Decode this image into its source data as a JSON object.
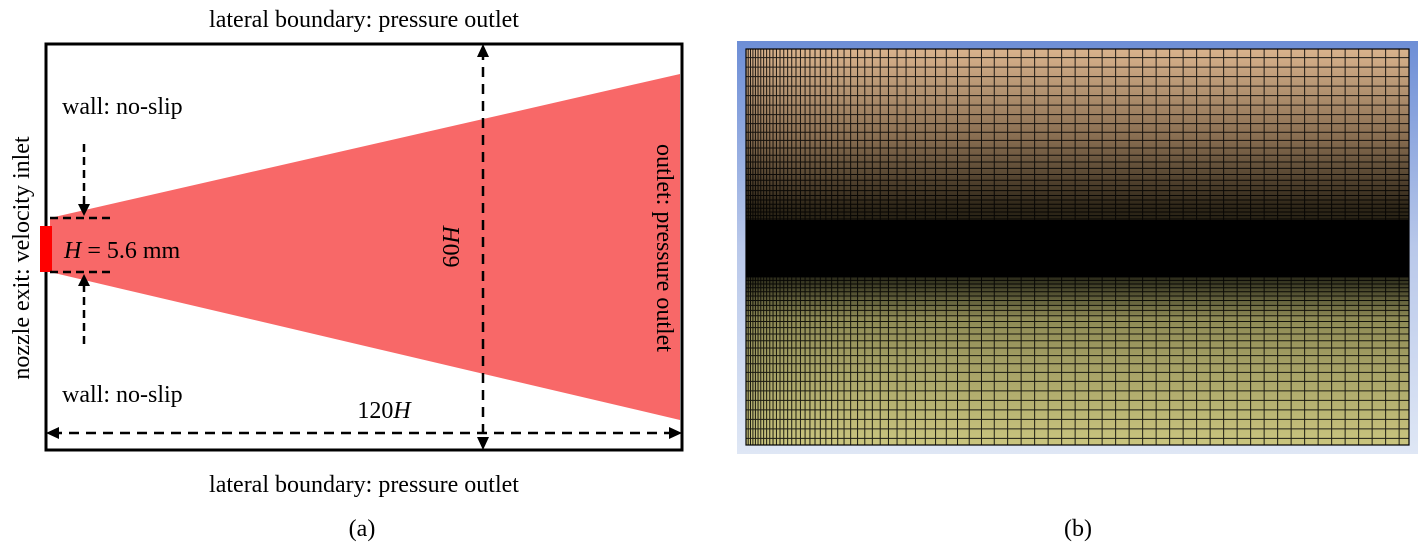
{
  "panel_a": {
    "caption": "(a)",
    "top_label": "lateral boundary: pressure outlet",
    "bottom_label": "lateral boundary: pressure outlet",
    "wall_top_label": "wall: no-slip",
    "wall_bottom_label": "wall: no-slip",
    "inlet_label": "nozzle exit: velocity inlet",
    "outlet_label": "outlet: pressure outlet",
    "height_symbol": "H",
    "height_eq": " = 5.6 mm",
    "dim_vertical": "60",
    "dim_horizontal": "120",
    "dim_symbol": "H",
    "colors": {
      "jet": "#f86868",
      "nozzle": "#ff0000"
    }
  },
  "panel_b": {
    "caption": "(b)",
    "colors": {
      "frame": "#7f9fd9",
      "mesh_top": "#d6b08a",
      "mesh_bottom": "#c9c27d",
      "core": "#000000"
    }
  }
}
